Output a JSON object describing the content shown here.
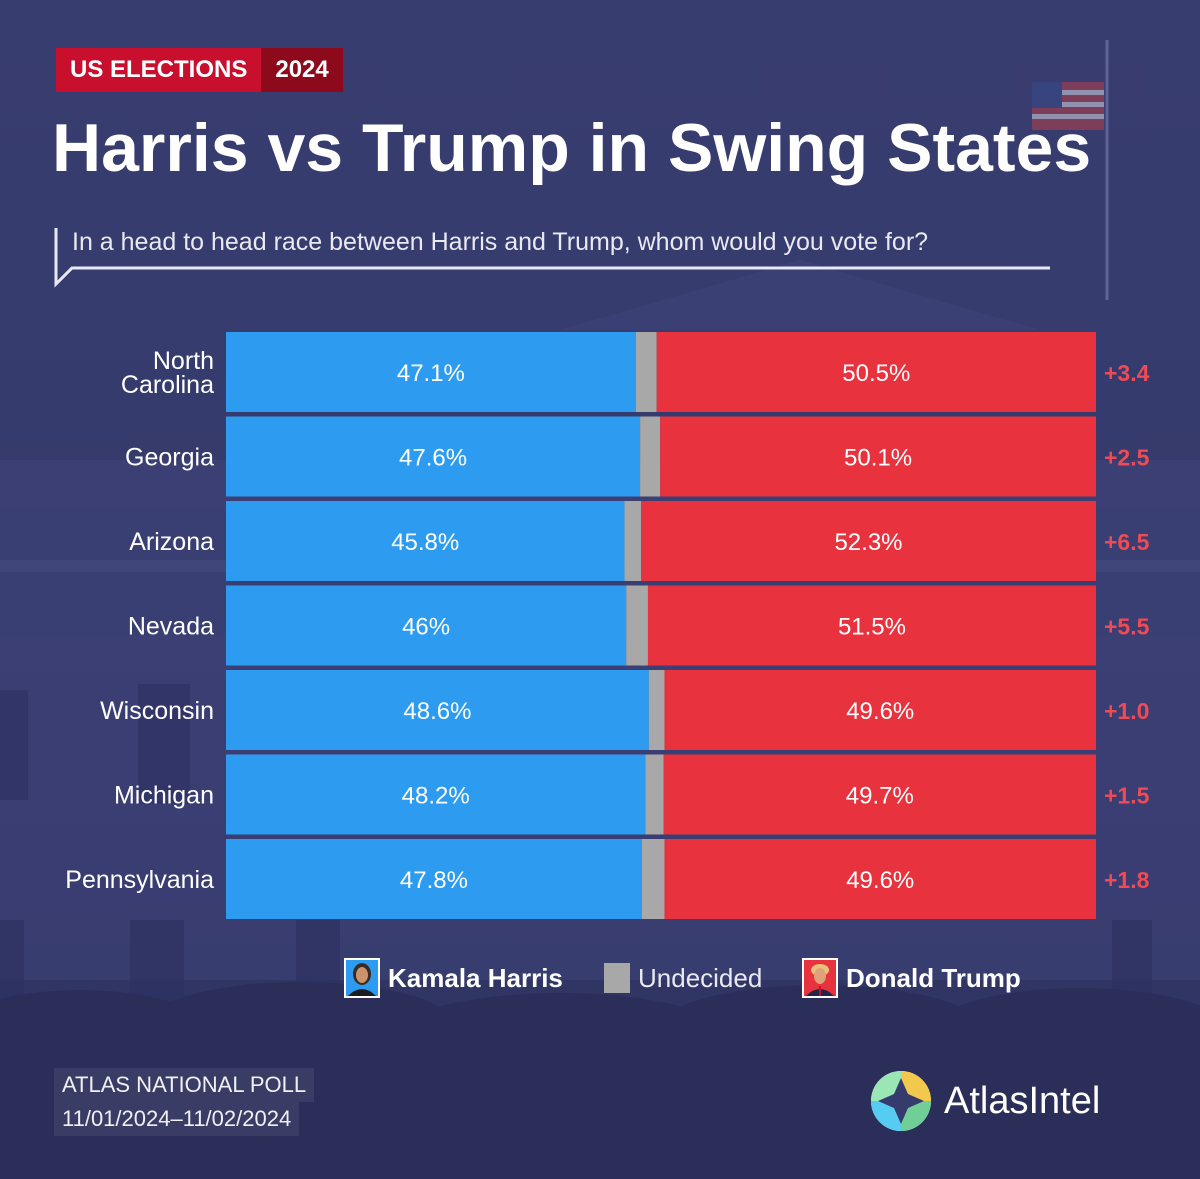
{
  "tag": {
    "primary": "US ELECTIONS",
    "secondary": "2024"
  },
  "title": "Harris vs Trump in Swing States",
  "subtitle": "In a head to head race between Harris and Trump, whom would you vote for?",
  "colors": {
    "harris": "#2d9cf0",
    "trump": "#e8333f",
    "undecided": "#a8a8a8",
    "margin": "#f04a55"
  },
  "chart_data": {
    "type": "bar",
    "stacked": true,
    "orientation": "horizontal",
    "categories": [
      "North\nCarolina",
      "Georgia",
      "Arizona",
      "Nevada",
      "Wisconsin",
      "Michigan",
      "Pennsylvania"
    ],
    "series": [
      {
        "name": "Kamala Harris",
        "values": [
          47.1,
          47.6,
          45.8,
          46,
          48.6,
          48.2,
          47.8
        ],
        "labels": [
          "47.1%",
          "47.6%",
          "45.8%",
          "46%",
          "48.6%",
          "48.2%",
          "47.8%"
        ]
      },
      {
        "name": "Undecided",
        "values": [
          2.4,
          2.3,
          1.9,
          2.5,
          1.8,
          2.1,
          2.6
        ]
      },
      {
        "name": "Donald Trump",
        "values": [
          50.5,
          50.1,
          52.3,
          51.5,
          49.6,
          49.7,
          49.6
        ],
        "labels": [
          "50.5%",
          "50.1%",
          "52.3%",
          "51.5%",
          "49.6%",
          "49.7%",
          "49.6%"
        ]
      }
    ],
    "margins": [
      "+3.4",
      "+2.5",
      "+6.5",
      "+5.5",
      "+1.0",
      "+1.5",
      "+1.8"
    ],
    "xlim": [
      0,
      100
    ],
    "legend": "bottom-center"
  },
  "legend": {
    "harris": "Kamala Harris",
    "undecided": "Undecided",
    "trump": "Donald Trump"
  },
  "footer": {
    "poll_name": "ATLAS NATIONAL POLL",
    "dates": "11/01/2024–11/02/2024"
  },
  "brand": {
    "name": "AtlasIntel",
    "icon": "atlas-compass-icon"
  }
}
